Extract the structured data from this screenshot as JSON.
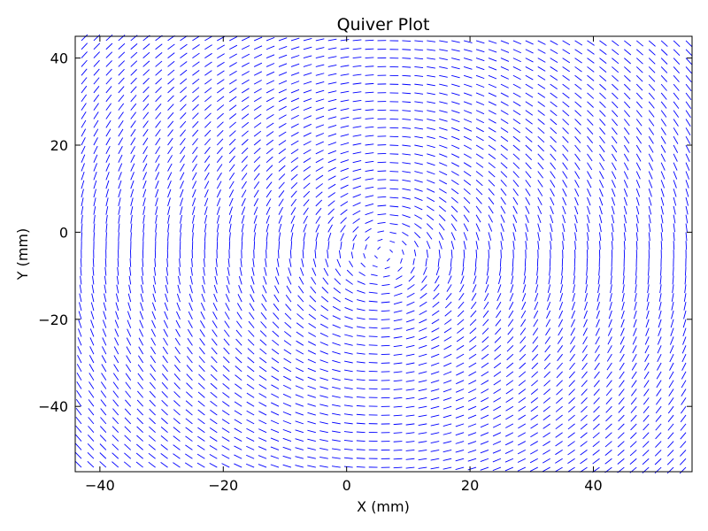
{
  "chart_data": {
    "type": "quiver",
    "title": "Quiver Plot",
    "xlabel": "X (mm)",
    "ylabel": "Y (mm)",
    "xlim": [
      -44,
      56
    ],
    "ylim": [
      -55,
      45
    ],
    "xticks": [
      -40,
      -20,
      0,
      20,
      40
    ],
    "yticks": [
      40,
      20,
      0,
      -20,
      -40
    ],
    "grid": false,
    "vector_color": "#0000ff",
    "field": {
      "x_range": [
        -43,
        55
      ],
      "y_range": [
        -54,
        44
      ],
      "spacing": 2,
      "vortex_center": [
        6,
        -5
      ],
      "rotation": "clockwise",
      "arrow_length": 1.4
    }
  }
}
